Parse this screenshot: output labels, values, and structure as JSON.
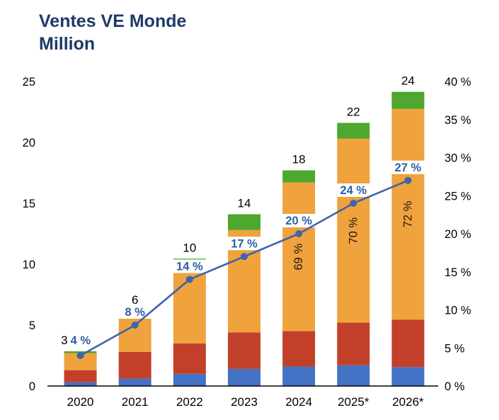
{
  "title": "Ventes VE Monde\nMillion",
  "title_color": "#1E3A68",
  "chart_data": {
    "type": "bar+line",
    "title": "Ventes VE Monde Million",
    "categories": [
      "2020",
      "2021",
      "2022",
      "2023",
      "2024",
      "2025*",
      "2026*"
    ],
    "bar_series": [
      {
        "name": "segment-blue-bottom",
        "color": "#4472C4",
        "values": [
          0.3,
          0.6,
          1.0,
          1.4,
          1.6,
          1.7,
          1.55
        ]
      },
      {
        "name": "segment-red-lower",
        "color": "#C2402A",
        "values": [
          1.0,
          2.2,
          2.5,
          3.0,
          2.9,
          3.5,
          3.9
        ]
      },
      {
        "name": "segment-orange-main",
        "color": "#F0A23C",
        "values": [
          1.4,
          3.1,
          6.4,
          8.4,
          12.2,
          15.1,
          17.3
        ]
      },
      {
        "name": "segment-green-top",
        "color": "#4EA72E",
        "values": [
          0.15,
          0.25,
          0.55,
          1.3,
          1.0,
          1.3,
          1.4
        ]
      }
    ],
    "bar_totals": [
      "3",
      "6",
      "10",
      "14",
      "18",
      "22",
      "24"
    ],
    "line_series": {
      "name": "ev-share-line",
      "color": "#3E64AD",
      "label_color": "#2E5DA6",
      "values_pct": [
        4,
        8,
        14,
        17,
        20,
        24,
        27
      ],
      "labels": [
        "4 %",
        "8 %",
        "14 %",
        "17 %",
        "20 %",
        "24 %",
        "27 %"
      ]
    },
    "inside_bar_labels": [
      {
        "category": "2024",
        "text": "69 %"
      },
      {
        "category": "2025*",
        "text": "70 %"
      },
      {
        "category": "2026*",
        "text": "72 %"
      }
    ],
    "left_axis": {
      "min": 0,
      "max": 25,
      "ticks": [
        {
          "value": 0,
          "label": "0"
        },
        {
          "value": 5,
          "label": "5"
        },
        {
          "value": 10,
          "label": "10"
        },
        {
          "value": 15,
          "label": "15"
        },
        {
          "value": 20,
          "label": "20"
        },
        {
          "value": 25,
          "label": "25"
        }
      ]
    },
    "right_axis": {
      "min": 0,
      "max": 40,
      "ticks": [
        {
          "value": 0,
          "label": "0 %"
        },
        {
          "value": 5,
          "label": "5 %"
        },
        {
          "value": 10,
          "label": "10 %"
        },
        {
          "value": 15,
          "label": "15 %"
        },
        {
          "value": 20,
          "label": "20 %"
        },
        {
          "value": 25,
          "label": "25 %"
        },
        {
          "value": 30,
          "label": "30 %"
        },
        {
          "value": 35,
          "label": "35 %"
        },
        {
          "value": 40,
          "label": "40 %"
        }
      ]
    },
    "grid": "off",
    "legend": "none"
  }
}
